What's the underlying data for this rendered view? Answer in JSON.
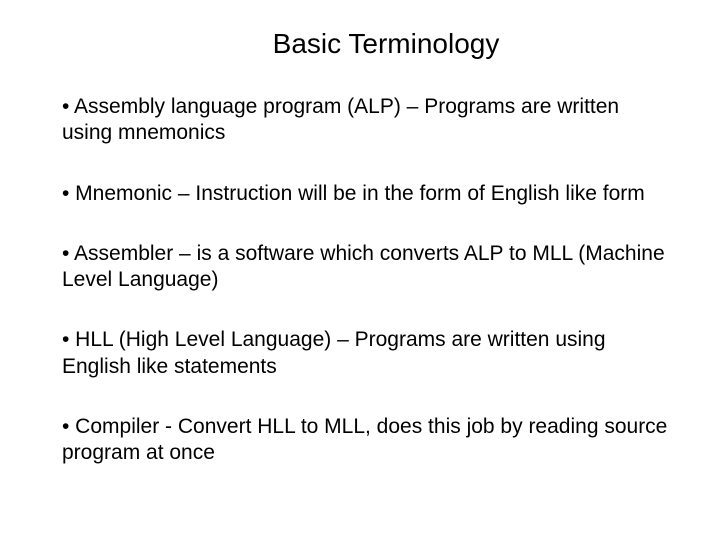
{
  "slide": {
    "title": "Basic Terminology",
    "title_fontsize": 28,
    "body_fontsize": 21,
    "background_color": "#ffffff",
    "text_color": "#000000",
    "font_family": "Arial, Helvetica, sans-serif",
    "bullets": [
      "• Assembly language program (ALP) – Programs are written using mnemonics",
      "• Mnemonic – Instruction will be in the form of English like form",
      "• Assembler – is a software which converts ALP to MLL (Machine Level Language)",
      "• HLL (High Level Language) – Programs are written using English like statements",
      "• Compiler  - Convert HLL to MLL, does this job by reading source program at once"
    ]
  }
}
